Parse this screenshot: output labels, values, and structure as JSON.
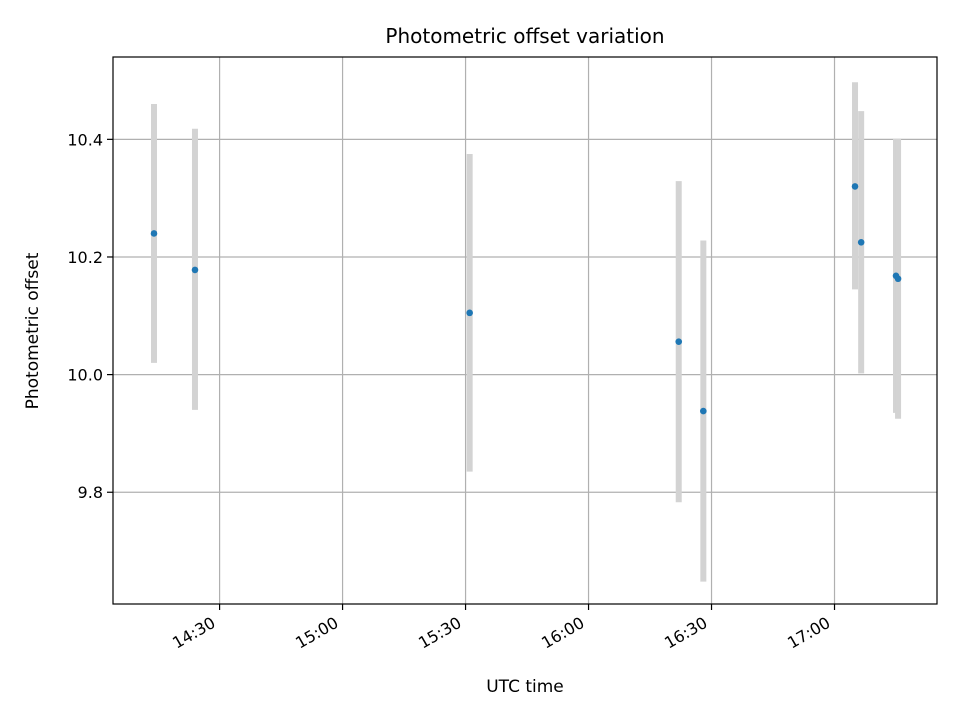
{
  "chart_data": {
    "type": "scatter",
    "title": "Photometric offset variation",
    "xlabel": "UTC time",
    "ylabel": "Photometric offset",
    "x_axis_kind": "time",
    "xlim": [
      "14:04",
      "17:25"
    ],
    "ylim": [
      9.61,
      10.54
    ],
    "grid": true,
    "x_ticks": [
      "14:30",
      "15:00",
      "15:30",
      "16:00",
      "16:30",
      "17:00"
    ],
    "y_ticks": [
      9.8,
      10.0,
      10.2,
      10.4
    ],
    "y_tick_labels": [
      "9.8",
      "10.0",
      "10.2",
      "10.4"
    ],
    "colors": {
      "point": "#1f77b4",
      "errorbar": "#d3d3d3",
      "grid": "#b0b0b0"
    },
    "series": [
      {
        "points": [
          {
            "x": "14:14",
            "y": 10.24,
            "yerr_low": 10.02,
            "yerr_high": 10.46
          },
          {
            "x": "14:24",
            "y": 10.178,
            "yerr_low": 9.94,
            "yerr_high": 10.418
          },
          {
            "x": "15:31",
            "y": 10.105,
            "yerr_low": 9.835,
            "yerr_high": 10.375
          },
          {
            "x": "16:22",
            "y": 10.056,
            "yerr_low": 9.783,
            "yerr_high": 10.329
          },
          {
            "x": "16:28",
            "y": 9.938,
            "yerr_low": 9.648,
            "yerr_high": 10.228
          },
          {
            "x": "17:05",
            "y": 10.32,
            "yerr_low": 10.145,
            "yerr_high": 10.497
          },
          {
            "x": "17:06.5",
            "y": 10.225,
            "yerr_low": 10.002,
            "yerr_high": 10.448
          },
          {
            "x": "17:15",
            "y": 10.168,
            "yerr_low": 9.935,
            "yerr_high": 10.401
          },
          {
            "x": "17:15.5",
            "y": 10.163,
            "yerr_low": 9.925,
            "yerr_high": 10.401
          }
        ]
      }
    ]
  }
}
